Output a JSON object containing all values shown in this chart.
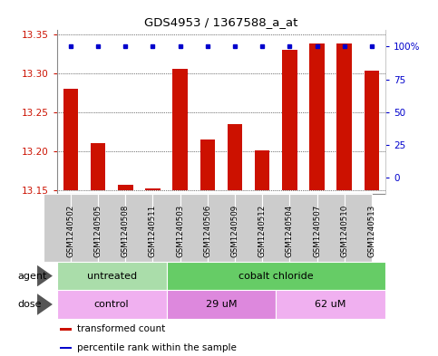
{
  "title": "GDS4953 / 1367588_a_at",
  "samples": [
    "GSM1240502",
    "GSM1240505",
    "GSM1240508",
    "GSM1240511",
    "GSM1240503",
    "GSM1240506",
    "GSM1240509",
    "GSM1240512",
    "GSM1240504",
    "GSM1240507",
    "GSM1240510",
    "GSM1240513"
  ],
  "red_values": [
    13.28,
    13.21,
    13.157,
    13.152,
    13.305,
    13.215,
    13.235,
    13.201,
    13.33,
    13.338,
    13.338,
    13.303
  ],
  "blue_values": [
    100,
    100,
    100,
    100,
    100,
    100,
    100,
    100,
    100,
    100,
    100,
    100
  ],
  "ymin": 13.15,
  "ymax": 13.35,
  "yticks": [
    13.15,
    13.2,
    13.25,
    13.3,
    13.35
  ],
  "yticks_right": [
    0,
    25,
    50,
    75,
    100
  ],
  "yticks_right_labels": [
    "0",
    "25",
    "50",
    "75",
    "100%"
  ],
  "agent_groups": [
    {
      "label": "untreated",
      "start": 0,
      "end": 4,
      "color": "#aaddaa"
    },
    {
      "label": "cobalt chloride",
      "start": 4,
      "end": 12,
      "color": "#66cc66"
    }
  ],
  "dose_groups": [
    {
      "label": "control",
      "start": 0,
      "end": 4,
      "color": "#f0b0f0"
    },
    {
      "label": "29 uM",
      "start": 4,
      "end": 8,
      "color": "#dd88dd"
    },
    {
      "label": "62 uM",
      "start": 8,
      "end": 12,
      "color": "#f0b0f0"
    }
  ],
  "bar_color": "#cc1100",
  "dot_color": "#0000cc",
  "background_color": "#ffffff",
  "plot_bg_color": "#ffffff",
  "grid_color": "#000000",
  "tick_label_color_left": "#cc1100",
  "tick_label_color_right": "#0000cc",
  "sample_box_color": "#cccccc",
  "legend_items": [
    {
      "color": "#cc1100",
      "label": "transformed count"
    },
    {
      "color": "#0000cc",
      "label": "percentile rank within the sample"
    }
  ],
  "bar_width": 0.55
}
